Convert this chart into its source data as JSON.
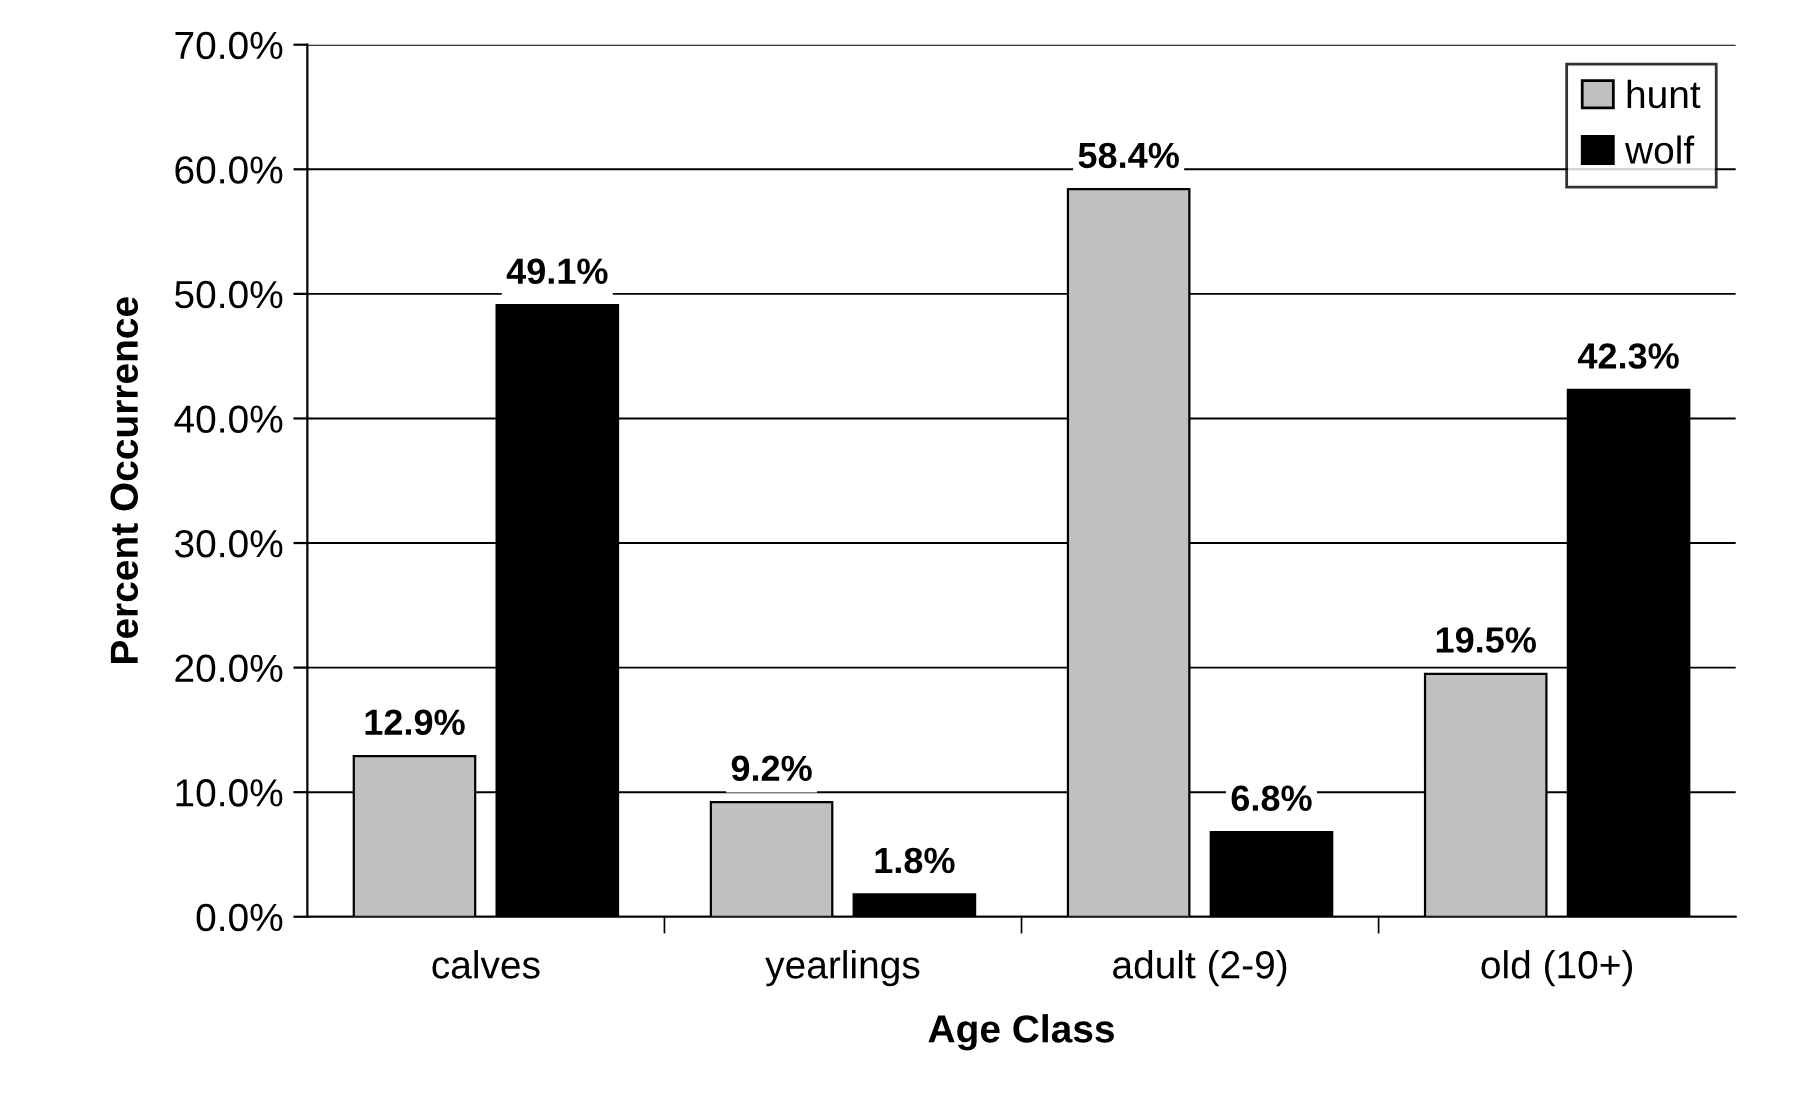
{
  "chart_data": {
    "type": "bar",
    "xlabel": "Age Class",
    "ylabel": "Percent Occurrence",
    "categories": [
      "calves",
      "yearlings",
      "adult (2-9)",
      "old (10+)"
    ],
    "series": [
      {
        "name": "hunt",
        "color": "#c0c0c0",
        "values": [
          12.9,
          9.2,
          58.4,
          19.5
        ],
        "value_labels": [
          "12.9%",
          "9.2%",
          "58.4%",
          "19.5%"
        ]
      },
      {
        "name": "wolf",
        "color": "#000000",
        "values": [
          49.1,
          1.8,
          6.8,
          42.3
        ],
        "value_labels": [
          "49.1%",
          "1.8%",
          "6.8%",
          "42.3%"
        ]
      }
    ],
    "ylim": [
      0,
      70
    ],
    "yticks": [
      {
        "value": 0,
        "label": "0.0%"
      },
      {
        "value": 10,
        "label": "10.0%"
      },
      {
        "value": 20,
        "label": "20.0%"
      },
      {
        "value": 30,
        "label": "30.0%"
      },
      {
        "value": 40,
        "label": "40.0%"
      },
      {
        "value": 50,
        "label": "50.0%"
      },
      {
        "value": 60,
        "label": "60.0%"
      },
      {
        "value": 70,
        "label": "70.0%"
      }
    ],
    "grid": "y",
    "legend": "top right"
  }
}
